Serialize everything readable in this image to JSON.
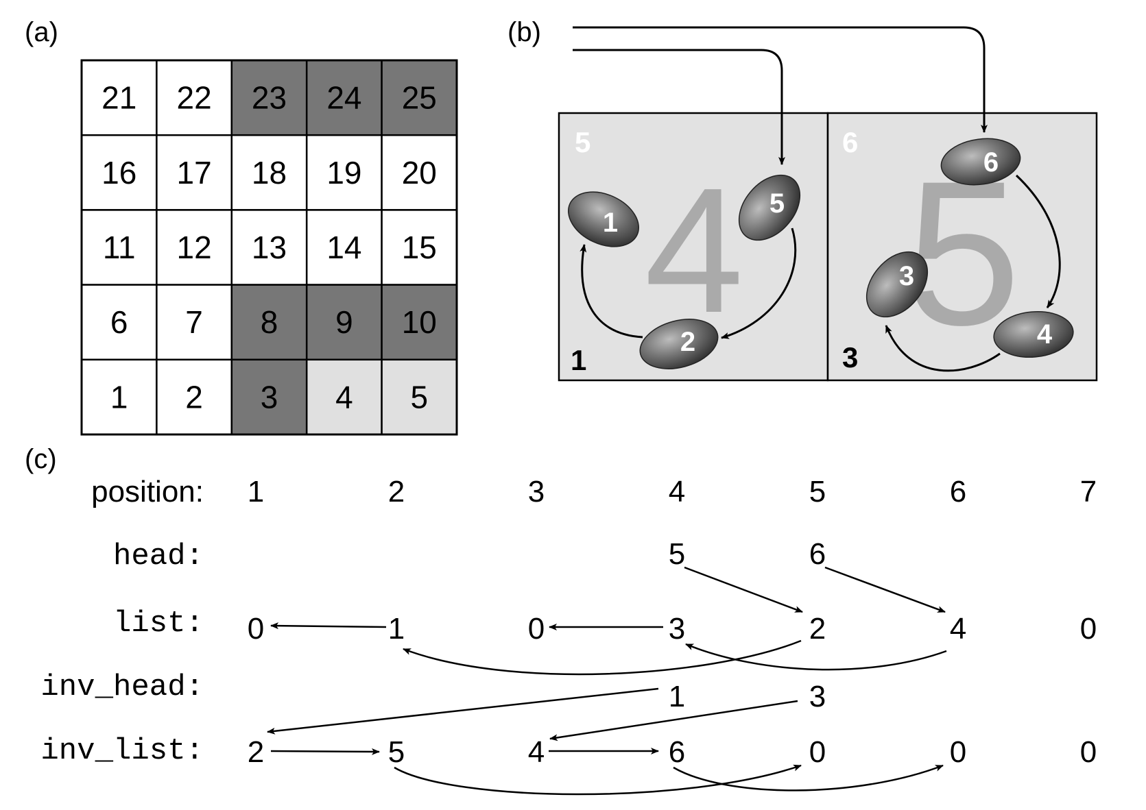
{
  "colors": {
    "dark_cell": "#777777",
    "light_cell": "#e0e0e0",
    "white_cell": "#ffffff",
    "box_fill": "#e2e2e2",
    "watermark": "#aaaaaa",
    "line": "#000000"
  },
  "panel_a": {
    "label": "(a)",
    "rows": [
      [
        {
          "v": "21",
          "s": "white"
        },
        {
          "v": "22",
          "s": "white"
        },
        {
          "v": "23",
          "s": "dark"
        },
        {
          "v": "24",
          "s": "dark"
        },
        {
          "v": "25",
          "s": "dark"
        }
      ],
      [
        {
          "v": "16",
          "s": "white"
        },
        {
          "v": "17",
          "s": "white"
        },
        {
          "v": "18",
          "s": "white"
        },
        {
          "v": "19",
          "s": "white"
        },
        {
          "v": "20",
          "s": "white"
        }
      ],
      [
        {
          "v": "11",
          "s": "white"
        },
        {
          "v": "12",
          "s": "white"
        },
        {
          "v": "13",
          "s": "white"
        },
        {
          "v": "14",
          "s": "white"
        },
        {
          "v": "15",
          "s": "white"
        }
      ],
      [
        {
          "v": "6",
          "s": "white"
        },
        {
          "v": "7",
          "s": "white"
        },
        {
          "v": "8",
          "s": "dark"
        },
        {
          "v": "9",
          "s": "dark"
        },
        {
          "v": "10",
          "s": "dark"
        }
      ],
      [
        {
          "v": "1",
          "s": "white"
        },
        {
          "v": "2",
          "s": "white"
        },
        {
          "v": "3",
          "s": "dark"
        },
        {
          "v": "4",
          "s": "light"
        },
        {
          "v": "5",
          "s": "light"
        }
      ]
    ]
  },
  "panel_b": {
    "label": "(b)",
    "boxes": [
      {
        "top_label": "5",
        "watermark": "4",
        "corner_label": "1",
        "ellipses": [
          "1",
          "5",
          "2"
        ]
      },
      {
        "top_label": "6",
        "watermark": "5",
        "corner_label": "3",
        "ellipses": [
          "6",
          "3",
          "4"
        ]
      }
    ]
  },
  "panel_c": {
    "label": "(c)",
    "position_label": "position:",
    "positions": [
      "1",
      "2",
      "3",
      "4",
      "5",
      "6",
      "7"
    ],
    "head_label": "head:",
    "head": [
      "",
      "",
      "",
      "5",
      "6",
      "",
      ""
    ],
    "list_label": "list:",
    "list": [
      "0",
      "1",
      "0",
      "3",
      "2",
      "4",
      "0"
    ],
    "inv_head_label": "inv_head:",
    "inv_head": [
      "",
      "",
      "",
      "1",
      "3",
      "",
      ""
    ],
    "inv_list_label": "inv_list:",
    "inv_list": [
      "2",
      "5",
      "4",
      "6",
      "0",
      "0",
      "0"
    ]
  }
}
